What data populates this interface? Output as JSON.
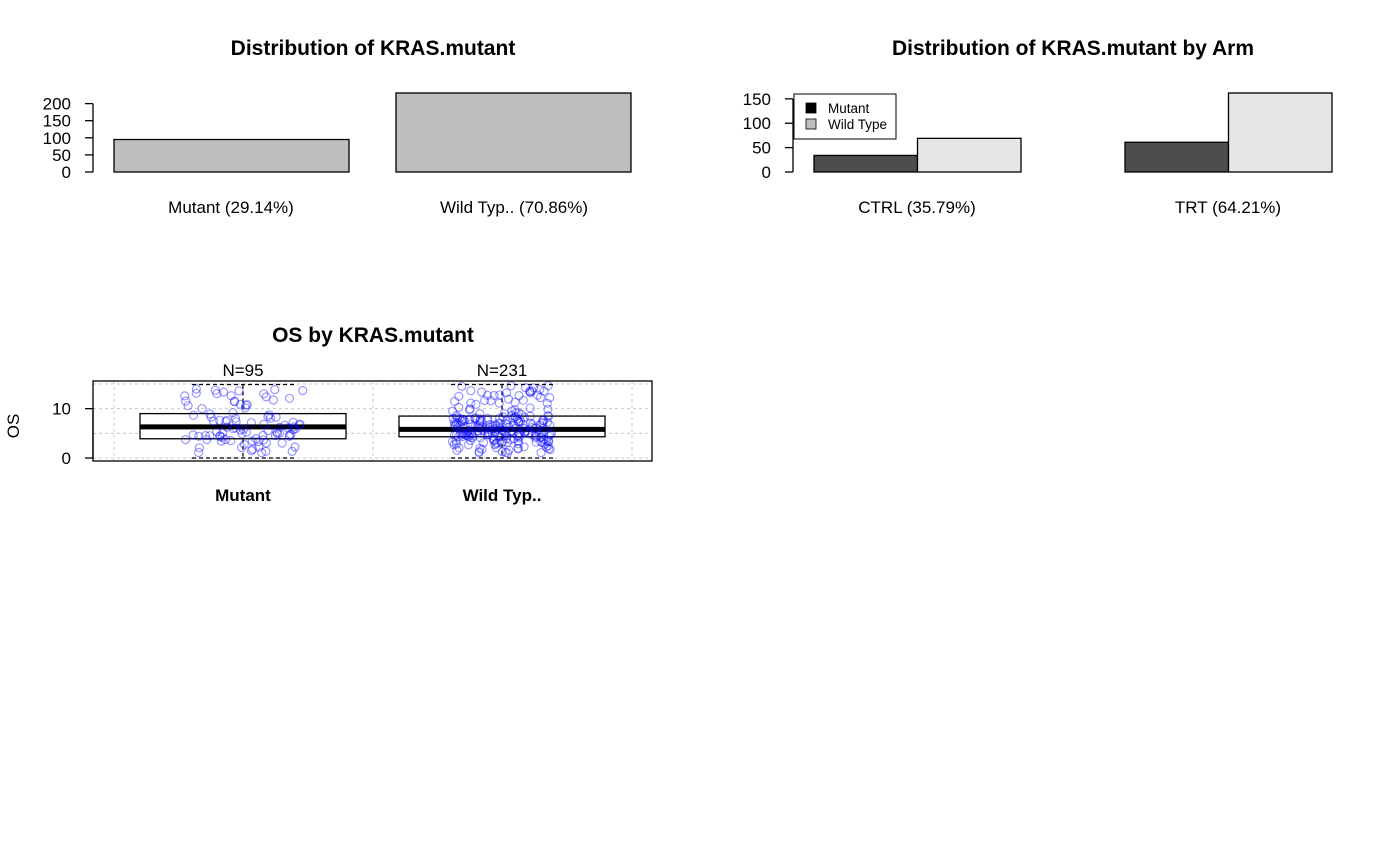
{
  "chart_data": [
    {
      "type": "bar",
      "title": "Distribution of KRAS.mutant",
      "categories": [
        "Mutant (29.14%)",
        "Wild Typ.. (70.86%)"
      ],
      "values": [
        95,
        231
      ],
      "yticks": [
        0,
        50,
        100,
        150,
        200
      ],
      "ylim": [
        0,
        231
      ],
      "bar_color": "#bebebe"
    },
    {
      "type": "bar",
      "title": "Distribution of KRAS.mutant by Arm",
      "categories": [
        "CTRL (35.79%)",
        "TRT (64.21%)"
      ],
      "series": [
        {
          "name": "Mutant",
          "values": [
            34,
            61
          ],
          "color": "#4d4d4d",
          "legend_color": "#000000"
        },
        {
          "name": "Wild Type",
          "values": [
            69,
            162
          ],
          "color": "#e6e6e6",
          "legend_color": "#bebebe"
        }
      ],
      "yticks": [
        0,
        50,
        100,
        150
      ],
      "ylim": [
        0,
        162
      ],
      "legend_position": "top-left"
    },
    {
      "type": "box",
      "title": "OS by KRAS.mutant",
      "ylabel": "OS",
      "categories": [
        "Mutant",
        "Wild Typ.."
      ],
      "n_labels": [
        "N=95",
        "N=231"
      ],
      "yticks": [
        0,
        10
      ],
      "ylim": [
        0,
        15
      ],
      "boxes": [
        {
          "q1": 3.9,
          "median": 6.3,
          "q3": 9.0,
          "whisker_low": 0,
          "whisker_high": 14.9
        },
        {
          "q1": 4.3,
          "median": 5.8,
          "q3": 8.5,
          "whisker_low": 0,
          "whisker_high": 14.9
        }
      ],
      "point_color": "#0000ff",
      "grid": true
    }
  ]
}
